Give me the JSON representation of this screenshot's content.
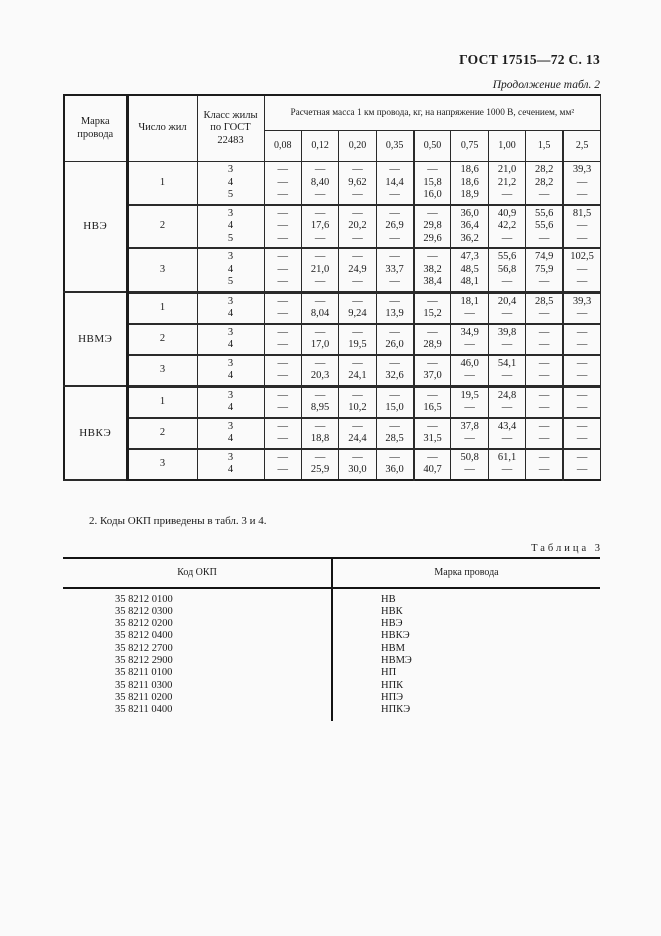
{
  "page": {
    "gost_header": "ГОСТ 17515—72 С. 13"
  },
  "table2": {
    "continuation": "Продолжение табл. 2",
    "col_headers": {
      "mark": "Марка провода",
      "cores": "Число жил",
      "core_class": "Класс жилы по ГОСТ 22483"
    },
    "mass_caption": "Расчетная масса 1 км провода, кг, на напряжение 1000 В, сечением, мм²",
    "sections": [
      "0,08",
      "0,12",
      "0,20",
      "0,35",
      "0,50",
      "0,75",
      "1,00",
      "1,5",
      "2,5"
    ],
    "groups": [
      {
        "mark": "НВЭ",
        "rows": [
          {
            "cores": "1",
            "classes": [
              "3",
              "4",
              "5"
            ],
            "cells": [
              [
                "—",
                "—",
                "—"
              ],
              [
                "—",
                "8,40",
                "—"
              ],
              [
                "—",
                "9,62",
                "—"
              ],
              [
                "—",
                "14,4",
                "—"
              ],
              [
                "—",
                "15,8",
                "16,0"
              ],
              [
                "18,6",
                "18,6",
                "18,9"
              ],
              [
                "21,0",
                "21,2",
                "—"
              ],
              [
                "28,2",
                "28,2",
                "—"
              ],
              [
                "39,3",
                "—",
                "—"
              ]
            ]
          },
          {
            "cores": "2",
            "classes": [
              "3",
              "4",
              "5"
            ],
            "cells": [
              [
                "—",
                "—",
                "—"
              ],
              [
                "—",
                "17,6",
                "—"
              ],
              [
                "—",
                "20,2",
                "—"
              ],
              [
                "—",
                "26,9",
                "—"
              ],
              [
                "—",
                "29,8",
                "29,6"
              ],
              [
                "36,0",
                "36,4",
                "36,2"
              ],
              [
                "40,9",
                "42,2",
                "—"
              ],
              [
                "55,6",
                "55,6",
                "—"
              ],
              [
                "81,5",
                "—",
                "—"
              ]
            ]
          },
          {
            "cores": "3",
            "classes": [
              "3",
              "4",
              "5"
            ],
            "cells": [
              [
                "—",
                "—",
                "—"
              ],
              [
                "—",
                "21,0",
                "—"
              ],
              [
                "—",
                "24,9",
                "—"
              ],
              [
                "—",
                "33,7",
                "—"
              ],
              [
                "—",
                "38,2",
                "38,4"
              ],
              [
                "47,3",
                "48,5",
                "48,1"
              ],
              [
                "55,6",
                "56,8",
                "—"
              ],
              [
                "74,9",
                "75,9",
                "—"
              ],
              [
                "102,5",
                "—",
                "—"
              ]
            ]
          }
        ]
      },
      {
        "mark": "НВМЭ",
        "rows": [
          {
            "cores": "1",
            "classes": [
              "3",
              "4"
            ],
            "cells": [
              [
                "—",
                "—"
              ],
              [
                "—",
                "8,04"
              ],
              [
                "—",
                "9,24"
              ],
              [
                "—",
                "13,9"
              ],
              [
                "—",
                "15,2"
              ],
              [
                "18,1",
                "—"
              ],
              [
                "20,4",
                "—"
              ],
              [
                "28,5",
                "—"
              ],
              [
                "39,3",
                "—"
              ]
            ]
          },
          {
            "cores": "2",
            "classes": [
              "3",
              "4"
            ],
            "cells": [
              [
                "—",
                "—"
              ],
              [
                "—",
                "17,0"
              ],
              [
                "—",
                "19,5"
              ],
              [
                "—",
                "26,0"
              ],
              [
                "—",
                "28,9"
              ],
              [
                "34,9",
                "—"
              ],
              [
                "39,8",
                "—"
              ],
              [
                "—",
                "—"
              ],
              [
                "—",
                "—"
              ]
            ]
          },
          {
            "cores": "3",
            "classes": [
              "3",
              "4"
            ],
            "cells": [
              [
                "—",
                "—"
              ],
              [
                "—",
                "20,3"
              ],
              [
                "—",
                "24,1"
              ],
              [
                "—",
                "32,6"
              ],
              [
                "—",
                "37,0"
              ],
              [
                "46,0",
                "—"
              ],
              [
                "54,1",
                "—"
              ],
              [
                "—",
                "—"
              ],
              [
                "—",
                "—"
              ]
            ]
          }
        ]
      },
      {
        "mark": "НВКЭ",
        "rows": [
          {
            "cores": "1",
            "classes": [
              "3",
              "4"
            ],
            "cells": [
              [
                "—",
                "—"
              ],
              [
                "—",
                "8,95"
              ],
              [
                "—",
                "10,2"
              ],
              [
                "—",
                "15,0"
              ],
              [
                "—",
                "16,5"
              ],
              [
                "19,5",
                "—"
              ],
              [
                "24,8",
                "—"
              ],
              [
                "—",
                "—"
              ],
              [
                "—",
                "—"
              ]
            ]
          },
          {
            "cores": "2",
            "classes": [
              "3",
              "4"
            ],
            "cells": [
              [
                "—",
                "—"
              ],
              [
                "—",
                "18,8"
              ],
              [
                "—",
                "24,4"
              ],
              [
                "—",
                "28,5"
              ],
              [
                "—",
                "31,5"
              ],
              [
                "37,8",
                "—"
              ],
              [
                "43,4",
                "—"
              ],
              [
                "—",
                "—"
              ],
              [
                "—",
                "—"
              ]
            ]
          },
          {
            "cores": "3",
            "classes": [
              "3",
              "4"
            ],
            "cells": [
              [
                "—",
                "—"
              ],
              [
                "—",
                "25,9"
              ],
              [
                "—",
                "30,0"
              ],
              [
                "—",
                "36,0"
              ],
              [
                "—",
                "40,7"
              ],
              [
                "50,8",
                "—"
              ],
              [
                "61,1",
                "—"
              ],
              [
                "—",
                "—"
              ],
              [
                "—",
                "—"
              ]
            ]
          }
        ]
      }
    ]
  },
  "note": "2.  Коды ОКП приведены в табл. 3 и 4.",
  "table3": {
    "caption": "Таблица 3",
    "headers": {
      "code": "Код ОКП",
      "mark": "Марка провода"
    },
    "rows": [
      {
        "code": "35 8212 0100",
        "mark": "НВ"
      },
      {
        "code": "35 8212 0300",
        "mark": "НВК"
      },
      {
        "code": "35 8212 0200",
        "mark": "НВЭ"
      },
      {
        "code": "35 8212 0400",
        "mark": "НВКЭ"
      },
      {
        "code": "35 8212 2700",
        "mark": "НВМ"
      },
      {
        "code": "35 8212 2900",
        "mark": "НВМЭ"
      },
      {
        "code": "35 8211 0100",
        "mark": "НП"
      },
      {
        "code": "35 8211 0300",
        "mark": "НПК"
      },
      {
        "code": "35 8211 0200",
        "mark": "НПЭ"
      },
      {
        "code": "35 8211 0400",
        "mark": "НПКЭ"
      }
    ]
  }
}
